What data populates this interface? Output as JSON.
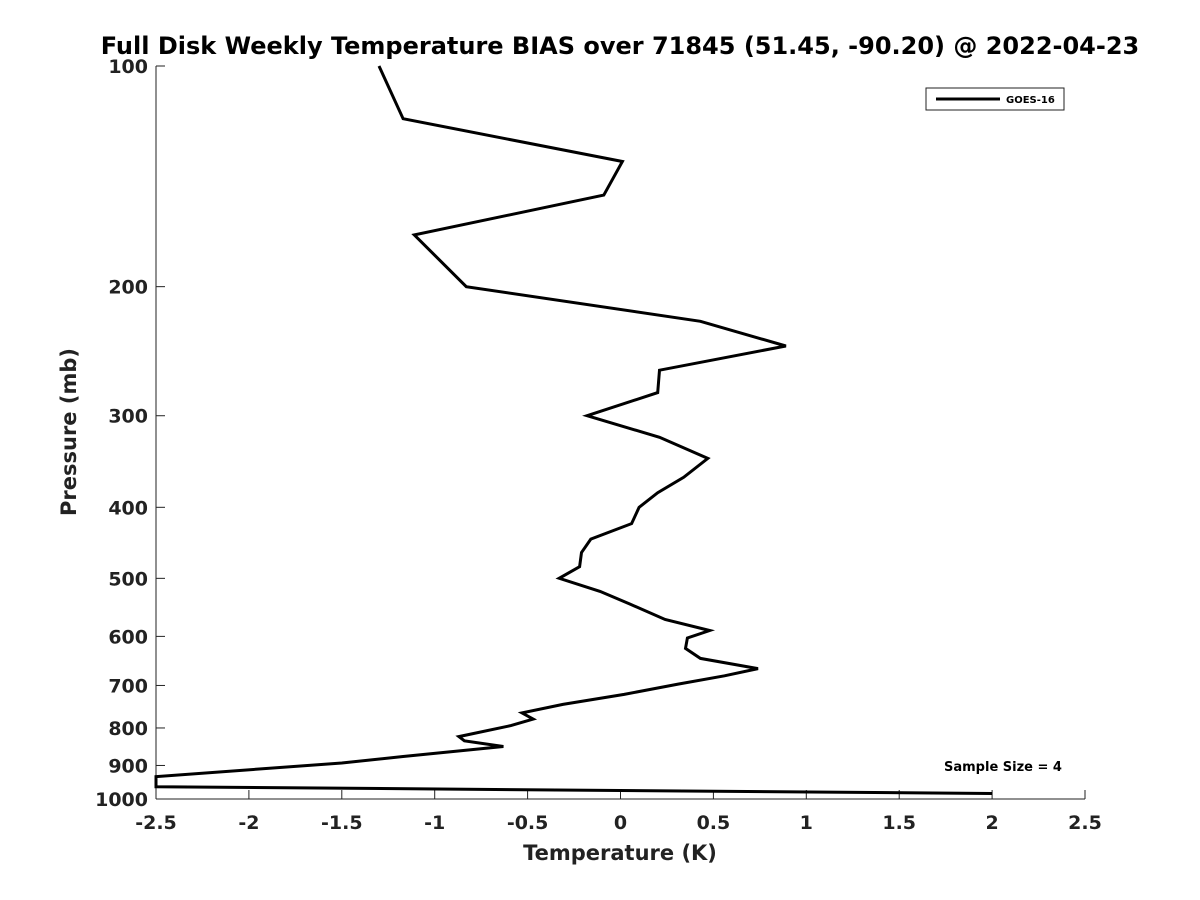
{
  "chart_data": {
    "type": "line",
    "title": "Full Disk Weekly Temperature BIAS over 71845 (51.45, -90.20) @ 2022-04-23",
    "xlabel": "Temperature (K)",
    "ylabel": "Pressure (mb)",
    "xlim": [
      -2.5,
      2.5
    ],
    "ylim": [
      100,
      1000
    ],
    "y_scale": "log",
    "y_reversed": true,
    "x_ticks": [
      -2.5,
      -2,
      -1.5,
      -1,
      -0.5,
      0,
      0.5,
      1,
      1.5,
      2,
      2.5
    ],
    "x_tick_labels": [
      "-2.5",
      "-2",
      "-1.5",
      "-1",
      "-0.5",
      "0",
      "0.5",
      "1",
      "1.5",
      "2",
      "2.5"
    ],
    "y_ticks": [
      100,
      200,
      300,
      400,
      500,
      600,
      700,
      800,
      900,
      1000
    ],
    "y_tick_labels": [
      "100",
      "200",
      "300",
      "400",
      "500",
      "600",
      "700",
      "800",
      "900",
      "1000"
    ],
    "grid": false,
    "legend": {
      "position": "top-right",
      "entries": [
        "GOES-16"
      ]
    },
    "annotation": "Sample Size = 4",
    "series": [
      {
        "name": "GOES-16",
        "color": "#000000",
        "points": [
          {
            "x": -1.3,
            "p": 100
          },
          {
            "x": -1.17,
            "p": 118
          },
          {
            "x": 0.01,
            "p": 135
          },
          {
            "x": -0.09,
            "p": 150
          },
          {
            "x": -1.11,
            "p": 170
          },
          {
            "x": -0.83,
            "p": 200
          },
          {
            "x": 0.43,
            "p": 223
          },
          {
            "x": 0.89,
            "p": 241
          },
          {
            "x": 0.21,
            "p": 260
          },
          {
            "x": 0.2,
            "p": 279
          },
          {
            "x": -0.18,
            "p": 300
          },
          {
            "x": 0.21,
            "p": 321
          },
          {
            "x": 0.47,
            "p": 343
          },
          {
            "x": 0.34,
            "p": 364
          },
          {
            "x": 0.2,
            "p": 382
          },
          {
            "x": 0.1,
            "p": 400
          },
          {
            "x": 0.06,
            "p": 421
          },
          {
            "x": -0.16,
            "p": 442
          },
          {
            "x": -0.21,
            "p": 461
          },
          {
            "x": -0.22,
            "p": 482
          },
          {
            "x": -0.33,
            "p": 500
          },
          {
            "x": -0.11,
            "p": 521
          },
          {
            "x": 0.05,
            "p": 542
          },
          {
            "x": 0.24,
            "p": 569
          },
          {
            "x": 0.48,
            "p": 589
          },
          {
            "x": 0.36,
            "p": 603
          },
          {
            "x": 0.35,
            "p": 623
          },
          {
            "x": 0.43,
            "p": 643
          },
          {
            "x": 0.74,
            "p": 664
          },
          {
            "x": 0.56,
            "p": 679
          },
          {
            "x": 0.31,
            "p": 697
          },
          {
            "x": 0.02,
            "p": 720
          },
          {
            "x": -0.31,
            "p": 743
          },
          {
            "x": -0.53,
            "p": 763
          },
          {
            "x": -0.47,
            "p": 778
          },
          {
            "x": -0.59,
            "p": 794
          },
          {
            "x": -0.87,
            "p": 822
          },
          {
            "x": -0.84,
            "p": 833
          },
          {
            "x": -0.63,
            "p": 848
          },
          {
            "x": -1.17,
            "p": 875
          },
          {
            "x": -1.5,
            "p": 893
          },
          {
            "x": -2.5,
            "p": 932
          },
          {
            "x": -2.5,
            "p": 962
          },
          {
            "x": 2.0,
            "p": 983
          }
        ]
      }
    ]
  }
}
